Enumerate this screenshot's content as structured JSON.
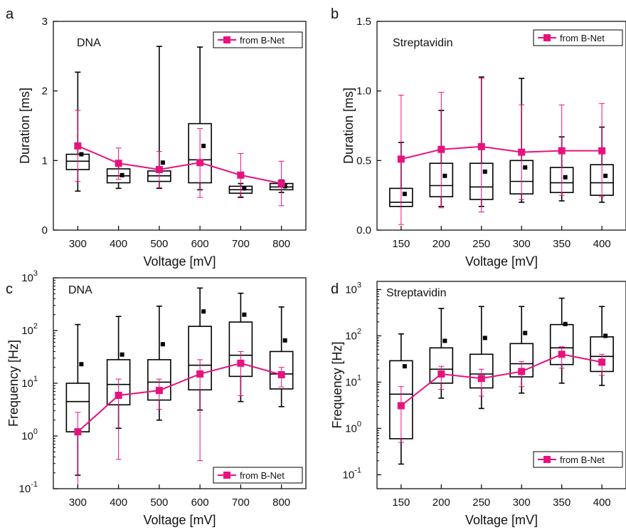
{
  "colors": {
    "bnet": "#e6137f",
    "box": "#000000"
  },
  "chart_data": [
    {
      "type": "box",
      "panel_label": "a",
      "title": "DNA",
      "xlabel": "Voltage [mV]",
      "ylabel": "Duration [ms]",
      "yscale": "linear",
      "ylim": [
        0,
        3
      ],
      "yticks": [
        0,
        1,
        2,
        3
      ],
      "yticklabels": [
        "0",
        "1",
        "2",
        "3"
      ],
      "categories": [
        "300",
        "400",
        "500",
        "600",
        "700",
        "800"
      ],
      "legend": {
        "label": "from B-Net",
        "placement": "top-right"
      },
      "box": {
        "q1": [
          0.87,
          0.68,
          0.7,
          0.68,
          0.53,
          0.58
        ],
        "median": [
          0.99,
          0.78,
          0.78,
          1.01,
          0.58,
          0.62
        ],
        "q3": [
          1.09,
          0.88,
          0.85,
          1.53,
          0.63,
          0.67
        ],
        "whisker_low": [
          0.56,
          0.6,
          0.6,
          0.58,
          0.47,
          0.54
        ],
        "whisker_high": [
          2.27,
          0.92,
          2.64,
          2.63,
          0.67,
          0.72
        ],
        "mean": [
          1.09,
          0.79,
          0.97,
          1.21,
          0.6,
          0.63
        ]
      },
      "bnet": {
        "values": [
          1.21,
          0.96,
          0.87,
          0.97,
          0.79,
          0.67
        ],
        "err_low": [
          0.7,
          0.73,
          0.61,
          0.47,
          0.48,
          0.35
        ],
        "err_high": [
          1.72,
          1.18,
          1.13,
          1.46,
          1.1,
          0.99
        ]
      }
    },
    {
      "type": "box",
      "panel_label": "b",
      "title": "Streptavidin",
      "xlabel": "Voltage [mV]",
      "ylabel": "Duration [ms]",
      "yscale": "linear",
      "ylim": [
        0,
        1.5
      ],
      "yticks": [
        0,
        0.5,
        1.0,
        1.5
      ],
      "yticklabels": [
        "0.0",
        "0.5",
        "1.0",
        "1.5"
      ],
      "categories": [
        "150",
        "200",
        "250",
        "300",
        "350",
        "400"
      ],
      "legend": {
        "label": "from B-Net",
        "placement": "top-right"
      },
      "box": {
        "q1": [
          0.17,
          0.24,
          0.22,
          0.26,
          0.27,
          0.25
        ],
        "median": [
          0.2,
          0.32,
          0.31,
          0.35,
          0.34,
          0.34
        ],
        "q3": [
          0.3,
          0.48,
          0.48,
          0.5,
          0.45,
          0.47
        ],
        "whisker_low": [
          0.17,
          0.17,
          0.17,
          0.2,
          0.21,
          0.2
        ],
        "whisker_high": [
          0.63,
          0.86,
          1.1,
          1.09,
          0.67,
          0.74
        ],
        "mean": [
          0.26,
          0.39,
          0.42,
          0.45,
          0.38,
          0.39
        ]
      },
      "bnet": {
        "values": [
          0.51,
          0.58,
          0.6,
          0.56,
          0.57,
          0.57
        ],
        "err_low": [
          0.04,
          0.16,
          0.13,
          0.22,
          0.25,
          0.24
        ],
        "err_high": [
          0.97,
          0.99,
          1.09,
          0.9,
          0.9,
          0.91
        ]
      }
    },
    {
      "type": "box",
      "panel_label": "c",
      "title": "DNA",
      "xlabel": "Voltage [mV]",
      "ylabel": "Frequency [Hz]",
      "yscale": "log",
      "ylim": [
        0.1,
        1000
      ],
      "yticks": [
        0.1,
        1,
        10,
        100,
        1000
      ],
      "yticklabels": [
        "10",
        "10",
        "10",
        "10",
        "10"
      ],
      "ytickexponents": [
        "-1",
        "0",
        "1",
        "2",
        "3"
      ],
      "categories": [
        "300",
        "400",
        "500",
        "600",
        "700",
        "800"
      ],
      "legend": {
        "label": "from B-Net",
        "placement": "bottom-right"
      },
      "box": {
        "q1": [
          1.2,
          3.9,
          4.8,
          7.5,
          13.5,
          7.8
        ],
        "median": [
          4.5,
          9.5,
          10.5,
          22,
          34,
          15
        ],
        "q3": [
          10,
          28,
          28,
          120,
          145,
          40
        ],
        "whisker_low": [
          0.18,
          1.4,
          2.0,
          3.1,
          4.5,
          3.6
        ],
        "whisker_high": [
          130,
          185,
          290,
          640,
          510,
          280
        ],
        "mean": [
          23,
          35,
          55,
          230,
          200,
          65
        ]
      },
      "bnet": {
        "values": [
          1.2,
          5.9,
          7.3,
          15,
          24,
          14.5
        ],
        "err_low": [
          0.1,
          0.36,
          3.2,
          0.34,
          5.8,
          8.5
        ],
        "err_high": [
          2.8,
          12,
          12,
          28,
          40,
          20
        ]
      }
    },
    {
      "type": "box",
      "panel_label": "d",
      "title": "Streptavidin",
      "xlabel": "Voltage [mV]",
      "ylabel": "Frequency [Hz]",
      "yscale": "log",
      "ylim": [
        0.05,
        1500
      ],
      "yticks": [
        0.1,
        1,
        10,
        100,
        1000
      ],
      "yticklabels": [
        "10",
        "10",
        "10",
        "10",
        "10"
      ],
      "ytickexponents": [
        "-1",
        "0",
        "1",
        "2",
        "3"
      ],
      "categories": [
        "150",
        "200",
        "250",
        "300",
        "350",
        "400"
      ],
      "legend": {
        "label": "from B-Net",
        "placement": "bottom-right"
      },
      "box": {
        "q1": [
          0.6,
          9.5,
          7.5,
          13,
          24,
          17
        ],
        "median": [
          5.5,
          19,
          15,
          25,
          55,
          36
        ],
        "q3": [
          29,
          55,
          40,
          68,
          175,
          95
        ],
        "whisker_low": [
          0.17,
          4.5,
          2.7,
          5.8,
          9.5,
          8.5
        ],
        "whisker_high": [
          110,
          390,
          430,
          430,
          650,
          430
        ],
        "mean": [
          22,
          78,
          90,
          115,
          180,
          100
        ]
      },
      "bnet": {
        "values": [
          3.1,
          15,
          12,
          17,
          40,
          27
        ],
        "err_low": [
          0.5,
          7,
          5,
          8,
          20,
          14
        ],
        "err_high": [
          8,
          22,
          19,
          28,
          58,
          40
        ]
      }
    }
  ]
}
